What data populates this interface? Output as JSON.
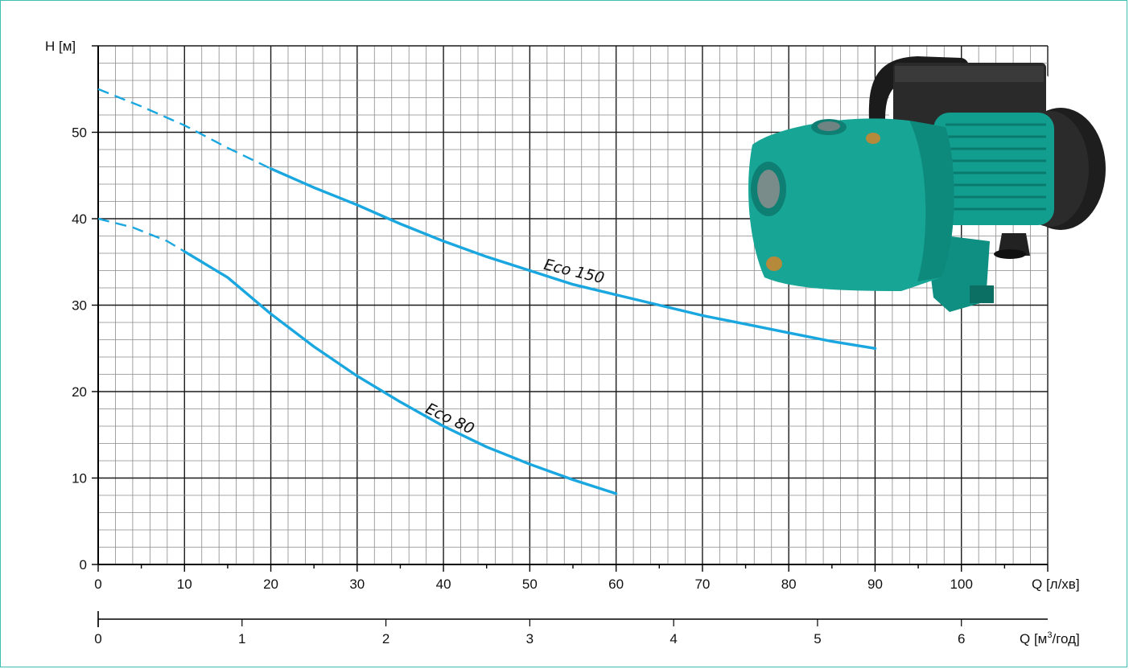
{
  "chart_data": {
    "type": "line",
    "title": "",
    "ylabel": "H [м]",
    "xlabel": "Q [л/хв]",
    "xlabel2_prefix": "Q [м",
    "xlabel2_sup": "3",
    "xlabel2_suffix": "/год]",
    "xlim": [
      0,
      110
    ],
    "ylim": [
      0,
      60
    ],
    "xlim2": [
      0,
      6.6
    ],
    "x_ticks": [
      "0",
      "10",
      "20",
      "30",
      "40",
      "50",
      "60",
      "70",
      "80",
      "90",
      "100"
    ],
    "x2_ticks": [
      "0",
      "1",
      "2",
      "3",
      "4",
      "5",
      "6"
    ],
    "y_ticks": [
      "0",
      "10",
      "20",
      "30",
      "40",
      "50"
    ],
    "grid": true,
    "series": [
      {
        "name": "Eco 150",
        "color": "#1aa7e0",
        "extrapolated": [
          [
            0,
            55
          ],
          [
            5,
            53
          ],
          [
            10,
            50.8
          ],
          [
            15,
            48.2
          ],
          [
            20,
            45.8
          ]
        ],
        "measured": [
          [
            20,
            45.8
          ],
          [
            25,
            43.6
          ],
          [
            30,
            41.6
          ],
          [
            35,
            39.4
          ],
          [
            40,
            37.4
          ],
          [
            45,
            35.6
          ],
          [
            50,
            34
          ],
          [
            55,
            32.4
          ],
          [
            60,
            31.2
          ],
          [
            65,
            30
          ],
          [
            70,
            28.8
          ],
          [
            75,
            27.8
          ],
          [
            80,
            26.8
          ],
          [
            85,
            25.8
          ],
          [
            90,
            25
          ]
        ],
        "label_anchor": [
          55,
          32.6
        ]
      },
      {
        "name": "Eco 80",
        "color": "#1aa7e0",
        "extrapolated": [
          [
            0,
            40
          ],
          [
            4,
            39
          ],
          [
            8,
            37.4
          ],
          [
            10,
            36.2
          ]
        ],
        "measured": [
          [
            10,
            36.2
          ],
          [
            15,
            33.2
          ],
          [
            20,
            29
          ],
          [
            25,
            25.2
          ],
          [
            30,
            21.8
          ],
          [
            35,
            18.8
          ],
          [
            40,
            16
          ],
          [
            45,
            13.6
          ],
          [
            50,
            11.6
          ],
          [
            55,
            9.8
          ],
          [
            60,
            8.2
          ]
        ],
        "label_anchor": [
          40.5,
          15.6
        ]
      }
    ]
  }
}
